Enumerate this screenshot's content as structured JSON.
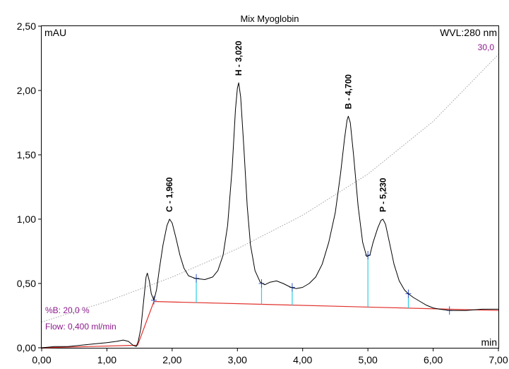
{
  "chart_data": {
    "type": "line",
    "title": "Mix Myoglobin",
    "ylabel": "mAU",
    "xlabel": "min",
    "wavelength_label": "WVL:280 nm",
    "gradient_end_label": "30,0",
    "info_lines": [
      "%B: 20,0 %",
      "Flow: 0,400 ml/min"
    ],
    "xlim": [
      0,
      7
    ],
    "ylim": [
      0,
      2.5
    ],
    "x_ticks": [
      "0,00",
      "1,00",
      "2,00",
      "3,00",
      "4,00",
      "5,00",
      "6,00",
      "7,00"
    ],
    "y_ticks": [
      "0,00",
      "0,50",
      "1,00",
      "1,50",
      "2,00",
      "2,50"
    ],
    "grid": false,
    "colors": {
      "trace": "#000000",
      "baseline": "#e0302a",
      "markers": "#2bd0e6",
      "gradient": "#a0a0a0",
      "info_text": "#8b1a8b"
    },
    "series": [
      {
        "values": [
          [
            0.0,
            0.0
          ],
          [
            0.2,
            0.01
          ],
          [
            0.4,
            0.01
          ],
          [
            0.6,
            0.02
          ],
          [
            0.8,
            0.03
          ],
          [
            1.0,
            0.04
          ],
          [
            1.15,
            0.05
          ],
          [
            1.25,
            0.06
          ],
          [
            1.33,
            0.05
          ],
          [
            1.4,
            0.02
          ],
          [
            1.45,
            0.01
          ],
          [
            1.48,
            0.05
          ],
          [
            1.52,
            0.15
          ],
          [
            1.56,
            0.35
          ],
          [
            1.6,
            0.55
          ],
          [
            1.62,
            0.58
          ],
          [
            1.65,
            0.52
          ],
          [
            1.68,
            0.42
          ],
          [
            1.72,
            0.37
          ],
          [
            1.76,
            0.45
          ],
          [
            1.8,
            0.6
          ],
          [
            1.86,
            0.8
          ],
          [
            1.92,
            0.95
          ],
          [
            1.96,
            1.0
          ],
          [
            2.0,
            0.97
          ],
          [
            2.06,
            0.85
          ],
          [
            2.12,
            0.72
          ],
          [
            2.18,
            0.62
          ],
          [
            2.25,
            0.56
          ],
          [
            2.35,
            0.54
          ],
          [
            2.5,
            0.53
          ],
          [
            2.62,
            0.55
          ],
          [
            2.7,
            0.6
          ],
          [
            2.78,
            0.72
          ],
          [
            2.85,
            0.95
          ],
          [
            2.92,
            1.4
          ],
          [
            2.97,
            1.85
          ],
          [
            3.0,
            2.02
          ],
          [
            3.02,
            2.06
          ],
          [
            3.05,
            1.95
          ],
          [
            3.1,
            1.55
          ],
          [
            3.15,
            1.1
          ],
          [
            3.2,
            0.8
          ],
          [
            3.27,
            0.6
          ],
          [
            3.35,
            0.51
          ],
          [
            3.42,
            0.49
          ],
          [
            3.5,
            0.51
          ],
          [
            3.6,
            0.52
          ],
          [
            3.7,
            0.5
          ],
          [
            3.82,
            0.47
          ],
          [
            3.9,
            0.46
          ],
          [
            4.0,
            0.47
          ],
          [
            4.1,
            0.5
          ],
          [
            4.2,
            0.55
          ],
          [
            4.3,
            0.65
          ],
          [
            4.4,
            0.82
          ],
          [
            4.5,
            1.05
          ],
          [
            4.58,
            1.35
          ],
          [
            4.64,
            1.62
          ],
          [
            4.68,
            1.77
          ],
          [
            4.7,
            1.8
          ],
          [
            4.73,
            1.75
          ],
          [
            4.78,
            1.5
          ],
          [
            4.85,
            1.1
          ],
          [
            4.92,
            0.82
          ],
          [
            4.98,
            0.71
          ],
          [
            5.03,
            0.72
          ],
          [
            5.08,
            0.82
          ],
          [
            5.15,
            0.93
          ],
          [
            5.2,
            0.99
          ],
          [
            5.23,
            1.0
          ],
          [
            5.27,
            0.96
          ],
          [
            5.33,
            0.82
          ],
          [
            5.4,
            0.65
          ],
          [
            5.48,
            0.52
          ],
          [
            5.56,
            0.45
          ],
          [
            5.62,
            0.42
          ],
          [
            5.7,
            0.39
          ],
          [
            5.8,
            0.36
          ],
          [
            5.9,
            0.33
          ],
          [
            6.0,
            0.31
          ],
          [
            6.1,
            0.3
          ],
          [
            6.25,
            0.29
          ],
          [
            6.5,
            0.29
          ],
          [
            6.75,
            0.3
          ],
          [
            7.0,
            0.3
          ]
        ]
      }
    ],
    "baseline_segments": [
      [
        [
          0.0,
          0.0
        ],
        [
          1.47,
          0.02
        ],
        [
          1.72,
          0.36
        ],
        [
          7.0,
          0.29
        ]
      ]
    ],
    "gradient_line": [
      [
        0.0,
        0.2
      ],
      [
        1.0,
        0.36
      ],
      [
        2.0,
        0.55
      ],
      [
        3.0,
        0.77
      ],
      [
        4.0,
        1.03
      ],
      [
        5.0,
        1.35
      ],
      [
        6.0,
        1.76
      ],
      [
        7.0,
        2.28
      ]
    ],
    "integration_marks": [
      {
        "x": 1.72,
        "y": 0.37
      },
      {
        "x": 2.37,
        "y": 0.54
      },
      {
        "x": 3.37,
        "y": 0.5
      },
      {
        "x": 3.84,
        "y": 0.47
      },
      {
        "x": 5.0,
        "y": 0.72
      },
      {
        "x": 5.62,
        "y": 0.42
      },
      {
        "x": 6.25,
        "y": 0.29
      }
    ],
    "peaks": [
      {
        "label": "C - 1,960",
        "x": 1.96,
        "y": 1.0
      },
      {
        "label": "H - 3,020",
        "x": 3.02,
        "y": 2.06
      },
      {
        "label": "B - 4,700",
        "x": 4.7,
        "y": 1.8
      },
      {
        "label": "P - 5,230",
        "x": 5.23,
        "y": 1.0
      }
    ]
  }
}
